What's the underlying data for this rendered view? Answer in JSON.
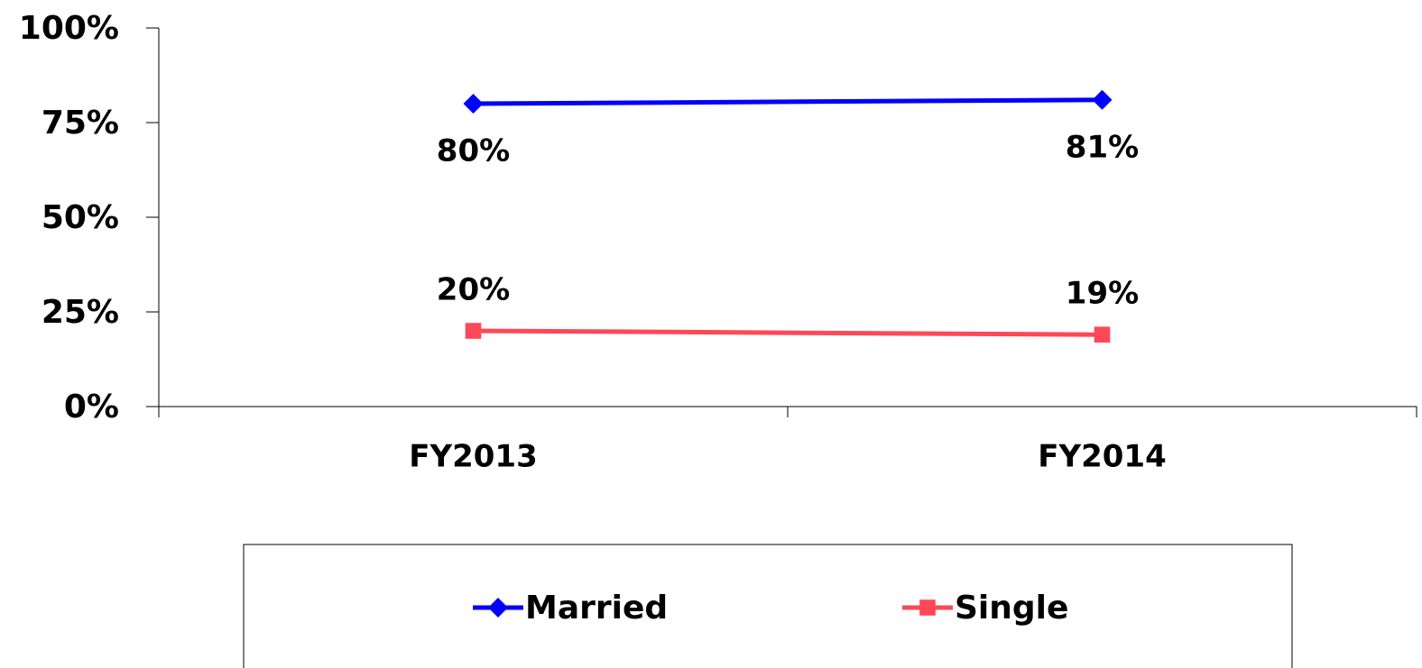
{
  "chart_data": {
    "type": "line",
    "categories": [
      "FY2013",
      "FY2014"
    ],
    "series": [
      {
        "name": "Married",
        "color": "#0000ff",
        "marker": "diamond",
        "values": [
          80,
          81
        ],
        "value_labels": [
          "80%",
          "81%"
        ],
        "label_position": "below"
      },
      {
        "name": "Single",
        "color": "#ff4757",
        "marker": "square",
        "values": [
          20,
          19
        ],
        "value_labels": [
          "20%",
          "19%"
        ],
        "label_position": "above"
      }
    ],
    "ylim": [
      0,
      100
    ],
    "yticks": [
      {
        "value": 0,
        "label": "0%"
      },
      {
        "value": 25,
        "label": "25%"
      },
      {
        "value": 50,
        "label": "50%"
      },
      {
        "value": 75,
        "label": "75%"
      },
      {
        "value": 100,
        "label": "100%"
      }
    ],
    "grid": false,
    "legend": "bottom"
  }
}
